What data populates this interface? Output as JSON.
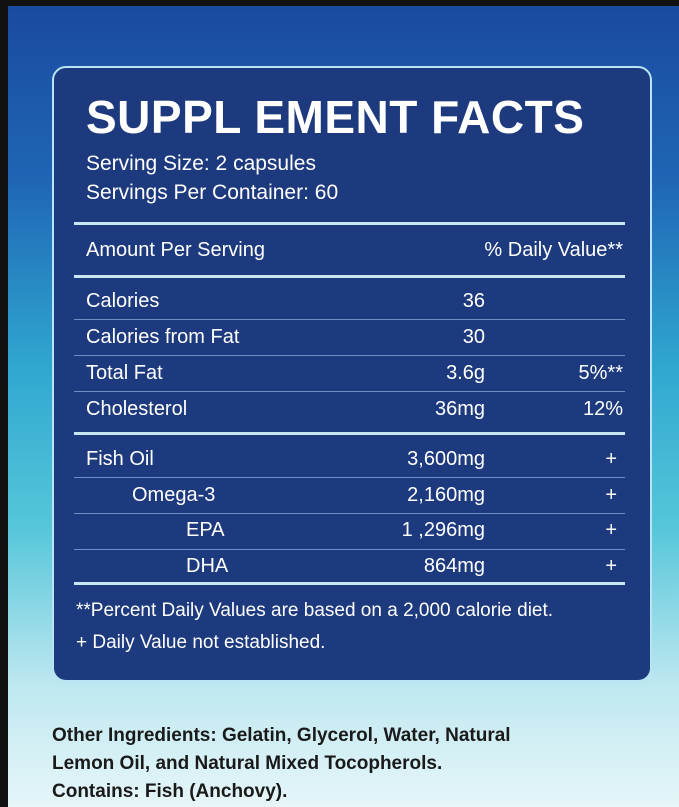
{
  "title": "SUPPL EMENT FACTS",
  "serving_size": "Serving Size: 2 capsules",
  "servings_per_container": "Servings Per Container: 60",
  "header": {
    "amount": "Amount Per Serving",
    "dv": "% Daily Value**"
  },
  "nutrients": [
    {
      "name": "Calories",
      "amount": "36",
      "dv": ""
    },
    {
      "name": "Calories from Fat",
      "amount": "30",
      "dv": ""
    },
    {
      "name": "Total Fat",
      "amount": "3.6g",
      "dv": "5%**"
    },
    {
      "name": "Cholesterol",
      "amount": "36mg",
      "dv": "12%"
    }
  ],
  "ingredients": [
    {
      "name": "Fish Oil",
      "amount": "3,600mg",
      "dv": "+"
    },
    {
      "name": "Omega-3",
      "amount": "2,160mg",
      "dv": "+"
    },
    {
      "name": "EPA",
      "amount": "1 ,296mg",
      "dv": "+"
    },
    {
      "name": "DHA",
      "amount": "864mg",
      "dv": "+"
    }
  ],
  "footnotes": [
    "**Percent Daily Values are based on a 2,000 calorie diet.",
    "+ Daily Value not established."
  ],
  "other": [
    "Other Ingredients:  Gelatin, Glycerol, Water, Natural",
    "Lemon Oil, and Natural Mixed Tocopherols.",
    "Contains: Fish (Anchovy)."
  ]
}
